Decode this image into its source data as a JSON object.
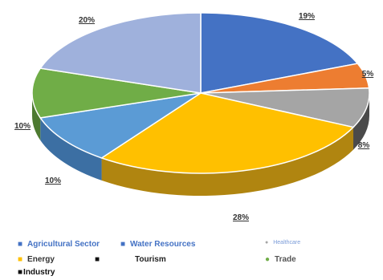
{
  "chart_data": {
    "type": "pie",
    "title": "",
    "slices": [
      {
        "name": "Agricultural Sector",
        "value": 19,
        "label": "19%",
        "color": "#4472c4",
        "side": "#2e5597"
      },
      {
        "name": "Water Resources",
        "value": 5,
        "label": "5%",
        "color": "#ed7d31",
        "side": "#b55a1f"
      },
      {
        "name": "Healthcare",
        "value": 8,
        "label": "8%",
        "color": "#a5a5a5",
        "side": "#4a4a4a"
      },
      {
        "name": "Energy",
        "value": 28,
        "label": "28%",
        "color": "#ffc000",
        "side": "#b08510"
      },
      {
        "name": "Tourism",
        "value": 10,
        "label": "10%",
        "color": "#5b9bd5",
        "side": "#3c6fa3"
      },
      {
        "name": "Trade",
        "value": 10,
        "label": "10%",
        "color": "#70ad47",
        "side": "#4d7a31"
      },
      {
        "name": "Industry",
        "value": 20,
        "label": "20%",
        "color": "#9fb1dc",
        "side": "#6f82b0"
      }
    ],
    "legend_placement": "bottom"
  },
  "legend": {
    "agri_label": "Agricultural   Sector",
    "water_label": "Water   Resources",
    "health_label": "Healthcare",
    "energy_label": "Energy",
    "tourism_label": "Tourism",
    "trade_label": "Trade",
    "industry_label": "Industry"
  }
}
